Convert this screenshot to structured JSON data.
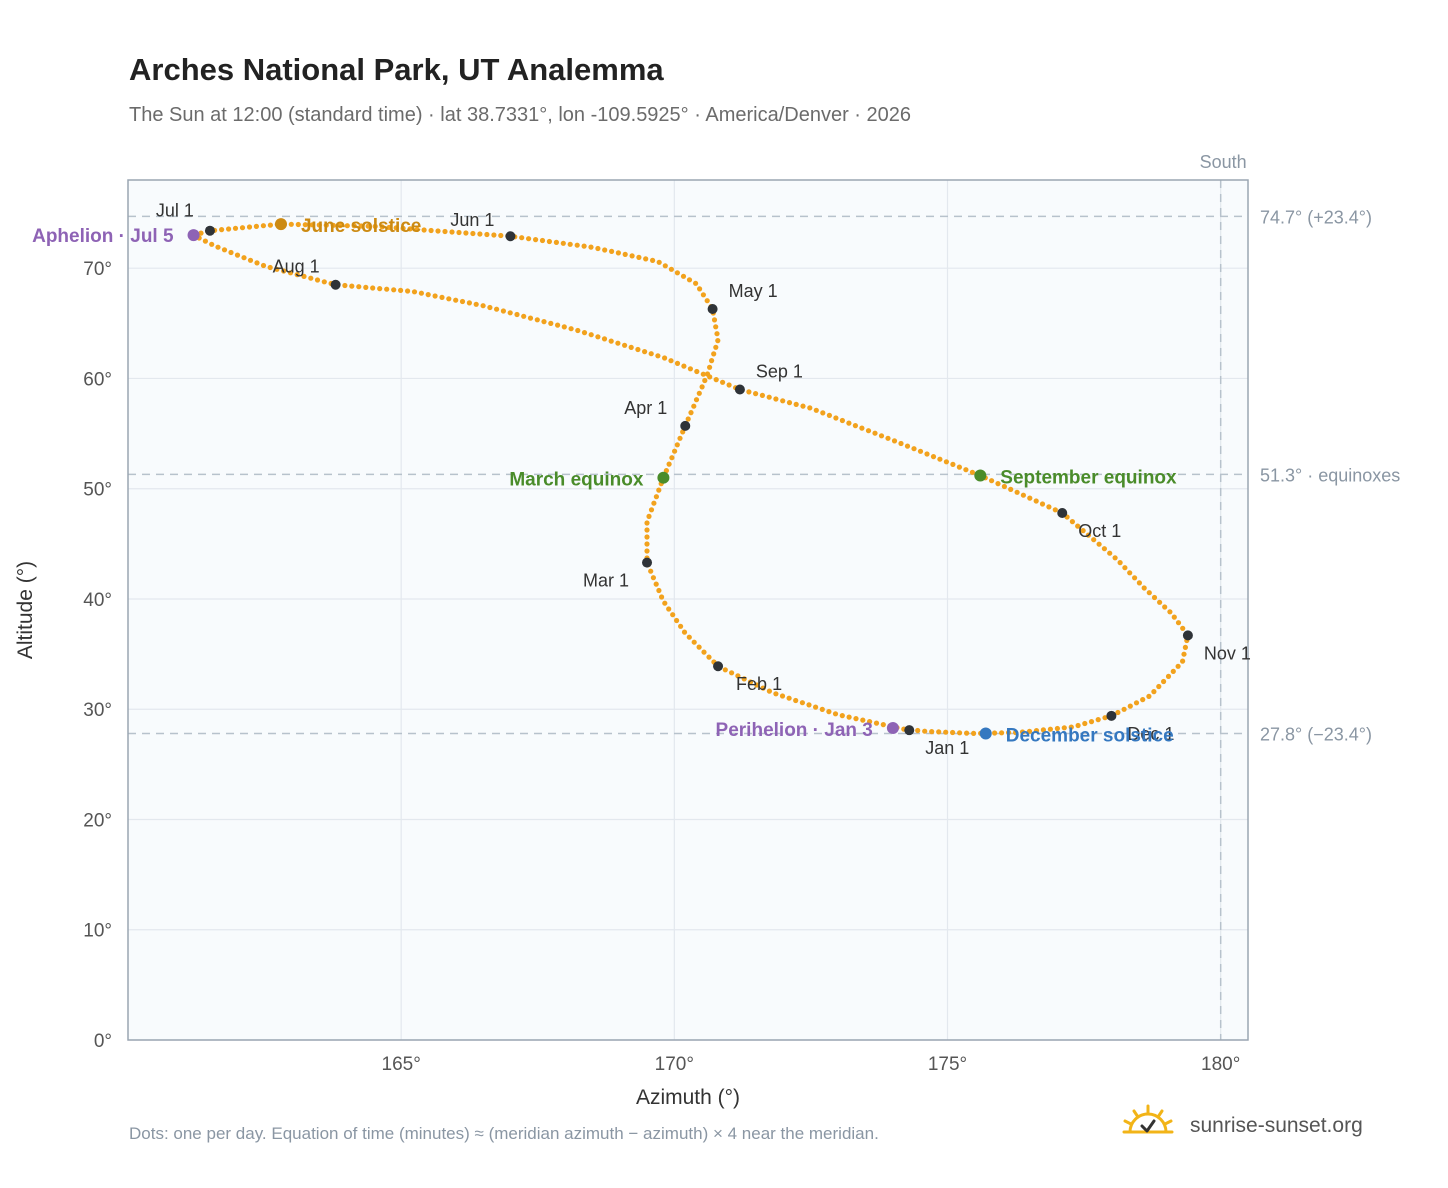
{
  "header": {
    "title": "Arches National Park, UT Analemma",
    "subtitle": "The Sun at 12:00 (standard time) · lat 38.7331°, lon -109.5925° · America/Denver · 2026"
  },
  "footer": {
    "note": "Dots: one per day. Equation of time (minutes) ≈ (meridian azimuth − azimuth) × 4 near the meridian.",
    "brand": "sunrise-sunset.org"
  },
  "chart_data": {
    "type": "scatter",
    "xlabel": "Azimuth (°)",
    "ylabel": "Altitude (°)",
    "xlim": [
      160,
      180.5
    ],
    "ylim": [
      0,
      78
    ],
    "x_ticks": [
      {
        "v": 165,
        "label": "165°"
      },
      {
        "v": 170,
        "label": "170°"
      },
      {
        "v": 175,
        "label": "175°"
      },
      {
        "v": 180,
        "label": "180°"
      }
    ],
    "y_ticks": [
      {
        "v": 0,
        "label": "0°"
      },
      {
        "v": 10,
        "label": "10°"
      },
      {
        "v": 20,
        "label": "20°"
      },
      {
        "v": 30,
        "label": "30°"
      },
      {
        "v": 40,
        "label": "40°"
      },
      {
        "v": 50,
        "label": "50°"
      },
      {
        "v": 60,
        "label": "60°"
      },
      {
        "v": 70,
        "label": "70°"
      }
    ],
    "grid": true,
    "reference_lines": [
      {
        "axis": "y",
        "value": 74.7,
        "label": "74.7° (+23.4°)"
      },
      {
        "axis": "y",
        "value": 51.3,
        "label": "51.3° · equinoxes"
      },
      {
        "axis": "y",
        "value": 27.8,
        "label": "27.8° (−23.4°)"
      },
      {
        "axis": "x",
        "value": 180,
        "label": "South"
      }
    ],
    "series": [
      {
        "color": "#f2a21d",
        "anchors": [
          [
            174.2,
            28.2
          ],
          [
            174.6,
            28.0
          ],
          [
            175.5,
            27.8
          ],
          [
            176.3,
            27.9
          ],
          [
            177.3,
            28.4
          ],
          [
            178.0,
            29.4
          ],
          [
            178.7,
            31.2
          ],
          [
            179.3,
            34.3
          ],
          [
            179.4,
            36.7
          ],
          [
            179.1,
            38.7
          ],
          [
            178.6,
            41.0
          ],
          [
            178.1,
            43.6
          ],
          [
            177.1,
            47.8
          ],
          [
            175.6,
            51.2
          ],
          [
            174.0,
            54.4
          ],
          [
            172.5,
            57.3
          ],
          [
            171.2,
            59.0
          ],
          [
            169.8,
            61.9
          ],
          [
            168.2,
            64.4
          ],
          [
            166.5,
            66.6
          ],
          [
            165.2,
            67.9
          ],
          [
            163.8,
            68.5
          ],
          [
            162.5,
            70.2
          ],
          [
            161.6,
            72.0
          ],
          [
            161.2,
            73.0
          ],
          [
            161.5,
            73.4
          ],
          [
            162.8,
            74.0
          ],
          [
            164.5,
            73.8
          ],
          [
            167.0,
            72.9
          ],
          [
            168.5,
            71.9
          ],
          [
            169.7,
            70.6
          ],
          [
            170.4,
            68.6
          ],
          [
            170.7,
            66.3
          ],
          [
            170.8,
            63.5
          ],
          [
            170.6,
            60.3
          ],
          [
            170.2,
            55.7
          ],
          [
            169.8,
            51.0
          ],
          [
            169.5,
            47.0
          ],
          [
            169.5,
            43.3
          ],
          [
            169.8,
            39.8
          ],
          [
            170.2,
            36.9
          ],
          [
            170.8,
            33.9
          ],
          [
            171.8,
            31.5
          ],
          [
            173.0,
            29.5
          ],
          [
            174.2,
            28.2
          ]
        ]
      }
    ],
    "month_markers": [
      {
        "label": "Jan 1",
        "x": 174.3,
        "y": 28.1
      },
      {
        "label": "Feb 1",
        "x": 170.8,
        "y": 33.9
      },
      {
        "label": "Mar 1",
        "x": 169.5,
        "y": 43.3
      },
      {
        "label": "Apr 1",
        "x": 170.2,
        "y": 55.7
      },
      {
        "label": "May 1",
        "x": 170.7,
        "y": 66.3
      },
      {
        "label": "Jun 1",
        "x": 167.0,
        "y": 72.9
      },
      {
        "label": "Jul 1",
        "x": 161.5,
        "y": 73.4
      },
      {
        "label": "Aug 1",
        "x": 163.8,
        "y": 68.5
      },
      {
        "label": "Sep 1",
        "x": 171.2,
        "y": 59.0
      },
      {
        "label": "Oct 1",
        "x": 177.1,
        "y": 47.8
      },
      {
        "label": "Nov 1",
        "x": 179.4,
        "y": 36.7
      },
      {
        "label": "Dec 1",
        "x": 178.0,
        "y": 29.4
      }
    ],
    "events": [
      {
        "label": "Aphelion · Jul 5",
        "x": 161.2,
        "y": 73.0,
        "color": "#8e63b5"
      },
      {
        "label": "June solstice",
        "x": 162.8,
        "y": 74.0,
        "color": "#cc8a12"
      },
      {
        "label": "March equinox",
        "x": 169.8,
        "y": 51.0,
        "color": "#4a8c2a"
      },
      {
        "label": "September equinox",
        "x": 175.6,
        "y": 51.2,
        "color": "#4a8c2a"
      },
      {
        "label": "Perihelion · Jan 3",
        "x": 174.0,
        "y": 28.3,
        "color": "#8e63b5"
      },
      {
        "label": "December solstice",
        "x": 175.7,
        "y": 27.8,
        "color": "#3578c0"
      }
    ]
  }
}
